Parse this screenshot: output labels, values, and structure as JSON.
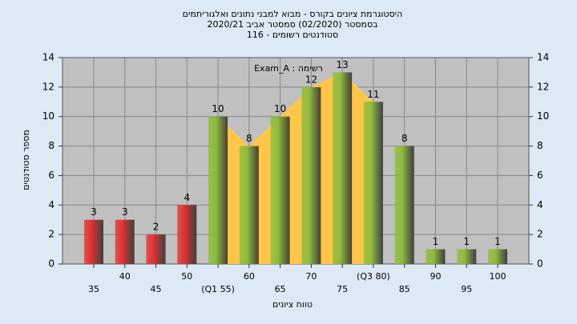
{
  "chart_data": {
    "type": "bar",
    "title": [
      "היסטוגרמת ציונים בקורס - מבוא למבני נתונים ואלגוריתמים",
      "בסמסטר  (02/2020)  סמסטר אביב  2020/21",
      "סטודנטים רשומים - 116"
    ],
    "annotation": "Exam_A : רשימה",
    "x_label": "טווח ציונים",
    "y_label": "מספר סטודנטים",
    "categories": [
      "35",
      "40",
      "45",
      "50",
      "(Q1 55)",
      "60",
      "65",
      "70",
      "75",
      "(Q3 80)",
      "85",
      "90",
      "95",
      "100"
    ],
    "values": [
      3,
      3,
      2,
      4,
      10,
      8,
      10,
      12,
      13,
      11,
      8,
      1,
      1,
      1
    ],
    "colors": [
      "#e03030",
      "#e03030",
      "#e03030",
      "#e03030",
      "#8dbb3c",
      "#8dbb3c",
      "#8dbb3c",
      "#8dbb3c",
      "#8dbb3c",
      "#8dbb3c",
      "#8dbb3c",
      "#8dbb3c",
      "#8dbb3c",
      "#8dbb3c"
    ],
    "area_color": "#ffc64a",
    "ylim": [
      0,
      14
    ],
    "yticks": [
      0,
      2,
      4,
      6,
      8,
      10,
      12,
      14
    ],
    "y2lim": [
      0,
      14
    ],
    "y2ticks": [
      0,
      2,
      4,
      6,
      8,
      10,
      12,
      14
    ],
    "grid": true
  }
}
